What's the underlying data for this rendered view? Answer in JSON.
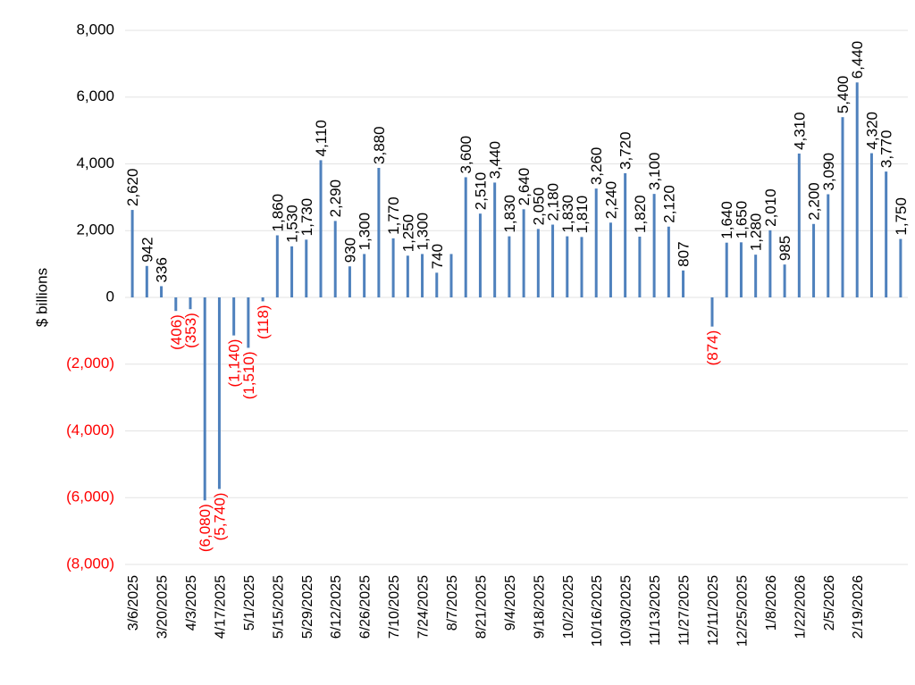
{
  "chart_data": {
    "type": "bar",
    "title": "",
    "xlabel": "",
    "ylabel": "$ billions",
    "ylim": [
      -8000,
      8000
    ],
    "yticks": [
      8000,
      6000,
      4000,
      2000,
      0,
      -2000,
      -4000,
      -6000,
      -8000
    ],
    "ytick_labels": [
      "8,000",
      "6,000",
      "4,000",
      "2,000",
      "0",
      "(2,000)",
      "(4,000)",
      "(6,000)",
      "(8,000)"
    ],
    "x_tick_labels": [
      "3/6/2025",
      "3/20/2025",
      "4/3/2025",
      "4/17/2025",
      "5/1/2025",
      "5/15/2025",
      "5/29/2025",
      "6/12/2025",
      "6/26/2025",
      "7/10/2025",
      "7/24/2025",
      "8/7/2025",
      "8/21/2025",
      "9/4/2025",
      "9/18/2025",
      "10/2/2025",
      "10/16/2025",
      "10/30/2025",
      "11/13/2025",
      "11/27/2025",
      "12/11/2025",
      "12/25/2025",
      "1/8/2026",
      "1/22/2026",
      "2/5/2026",
      "2/19/2026"
    ],
    "values": [
      2620,
      942,
      336,
      -406,
      -353,
      -6080,
      -5740,
      -1140,
      -1510,
      -118,
      1860,
      1530,
      1730,
      4110,
      2290,
      930,
      1300,
      3880,
      1770,
      1250,
      1300,
      740,
      1300,
      3600,
      2510,
      3440,
      1830,
      2640,
      2050,
      2180,
      1830,
      1810,
      3260,
      2240,
      3720,
      1820,
      3100,
      2120,
      807,
      0,
      -874,
      1640,
      1650,
      1280,
      2010,
      985,
      4310,
      2200,
      3090,
      5400,
      6440,
      4320,
      3770,
      1750
    ],
    "data_labels": [
      "2,620",
      "942",
      "336",
      "(406)",
      "(353)",
      "(6,080)",
      "(5,740)",
      "(1,140)",
      "(1,510)",
      "(118)",
      "1,860",
      "1,530",
      "1,730",
      "4,110",
      "2,290",
      "930",
      "1,300",
      "3,880",
      "1,770",
      "1,250",
      "1,300",
      "740",
      "",
      "3,600",
      "2,510",
      "3,440",
      "1,830",
      "2,640",
      "2,050",
      "2,180",
      "1,830",
      "1,810",
      "3,260",
      "2,240",
      "3,720",
      "1,820",
      "3,100",
      "2,120",
      "807",
      "",
      "(874)",
      "1,640",
      "1,650",
      "1,280",
      "2,010",
      "985",
      "4,310",
      "2,200",
      "3,090",
      "5,400",
      "6,440",
      "4,320",
      "3,770",
      "1,750"
    ],
    "colors": {
      "bar": "#4f81bd",
      "negative_text": "#ff0000",
      "positive_text": "#000000",
      "grid": "#e3e3e3"
    },
    "grid": true,
    "legend": "none"
  }
}
